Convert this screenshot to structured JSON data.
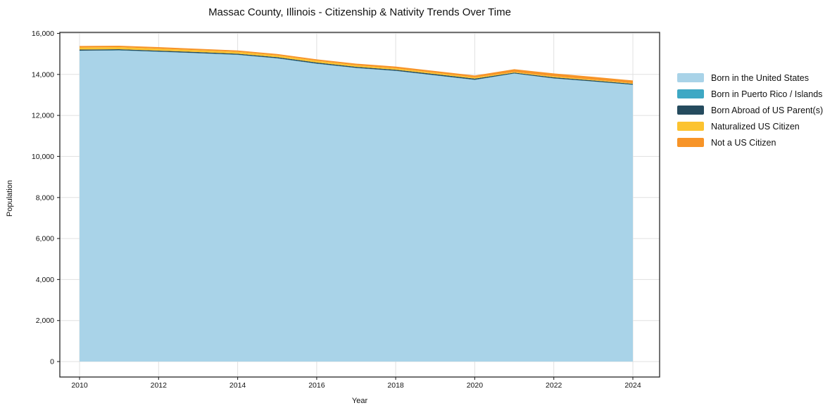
{
  "chart_data": {
    "type": "area",
    "stacked": true,
    "title": "Massac County, Illinois - Citizenship & Nativity Trends Over Time",
    "xlabel": "Year",
    "ylabel": "Population",
    "x": [
      2010,
      2011,
      2012,
      2013,
      2014,
      2015,
      2016,
      2017,
      2018,
      2019,
      2020,
      2021,
      2022,
      2023,
      2024
    ],
    "series": [
      {
        "name": "Born in the United States",
        "color": "#a9d3e8",
        "values": [
          15150,
          15170,
          15100,
          15030,
          14950,
          14780,
          14520,
          14310,
          14170,
          13950,
          13730,
          14040,
          13800,
          13650,
          13490
        ]
      },
      {
        "name": "Born in Puerto Rico / Islands",
        "color": "#3ea8c4",
        "values": [
          10,
          10,
          10,
          10,
          10,
          10,
          10,
          10,
          10,
          10,
          10,
          10,
          10,
          10,
          10
        ]
      },
      {
        "name": "Born Abroad of US Parent(s)",
        "color": "#254b5e",
        "values": [
          50,
          50,
          50,
          50,
          50,
          50,
          50,
          50,
          50,
          55,
          55,
          35,
          50,
          45,
          45
        ]
      },
      {
        "name": "Naturalized US Citizen",
        "color": "#fcc330",
        "values": [
          105,
          100,
          95,
          90,
          90,
          85,
          85,
          75,
          70,
          65,
          60,
          35,
          50,
          40,
          30
        ]
      },
      {
        "name": "Not a US Citizen",
        "color": "#f79428",
        "values": [
          70,
          70,
          75,
          70,
          70,
          70,
          70,
          80,
          85,
          85,
          90,
          135,
          140,
          135,
          130
        ]
      }
    ],
    "ylim": [
      0,
      16000
    ],
    "yticks": [
      0,
      2000,
      4000,
      6000,
      8000,
      10000,
      12000,
      14000,
      16000
    ],
    "xticks": [
      2010,
      2012,
      2014,
      2016,
      2018,
      2020,
      2022,
      2024
    ],
    "grid": true,
    "legend_position": "right"
  },
  "style": {
    "grid_color": "#e0e0e0",
    "spine_color": "#262626",
    "tick_label_color": "#111111",
    "background": "#ffffff"
  }
}
